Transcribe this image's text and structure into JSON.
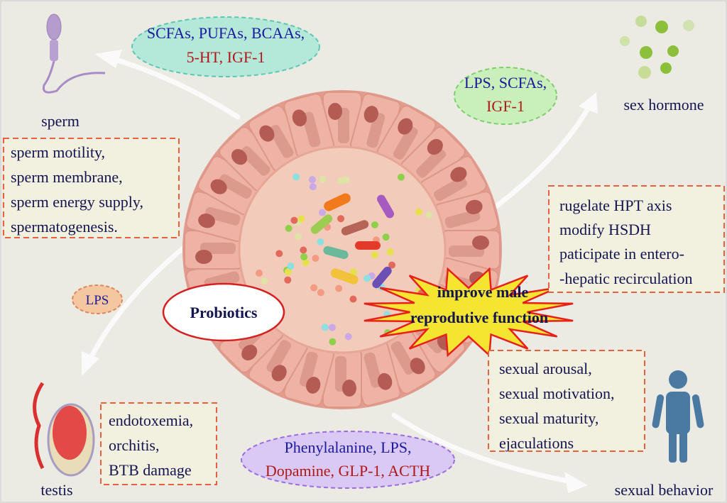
{
  "colors": {
    "background": "#ebeae3",
    "text_blue": "#1a1a9a",
    "text_red": "#b01818",
    "text_dark": "#141450",
    "box_border": "#e8603c",
    "box_fill": "#f2f1e0",
    "cell": "#e9aa9c",
    "lumen": "#f3cbbb",
    "person": "#4a7aa2"
  },
  "top_ellipse": {
    "line1": "SCFAs, PUFAs, BCAAs,",
    "line2": "5-HT, IGF-1"
  },
  "right_ellipse": {
    "line1": "LPS, SCFAs,",
    "line2": "IGF-1"
  },
  "lps_ellipse": {
    "label": "LPS"
  },
  "bottom_ellipse": {
    "line1": "Phenylalanine, LPS,",
    "line2": "Dopamine, GLP-1, ACTH"
  },
  "center": {
    "probiotics": "Probiotics",
    "burst_line1": "improve male",
    "burst_line2": "reprodutive function"
  },
  "sperm": {
    "label": "sperm",
    "effects": [
      "sperm motility,",
      "sperm membrane,",
      "sperm energy supply,",
      "spermatogenesis."
    ]
  },
  "sex_hormone": {
    "label": "sex hormone",
    "effects": [
      "rugelate HPT axis",
      "modify HSDH",
      "paticipate in entero-",
      "-hepatic recirculation"
    ]
  },
  "sexual_behavior": {
    "label": "sexual behavior",
    "effects": [
      "sexual arousal,",
      "sexual motivation,",
      "sexual maturity,",
      "ejaculations"
    ]
  },
  "testis": {
    "label": "testis",
    "effects": [
      "endotoxemia,",
      "orchitis,",
      "BTB  damage"
    ]
  }
}
